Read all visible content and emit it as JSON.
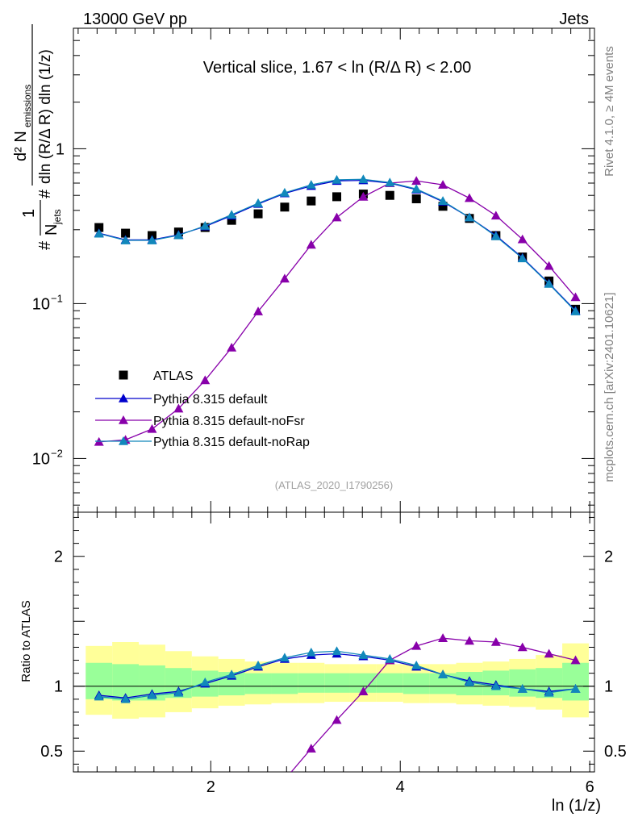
{
  "header": {
    "left": "13000 GeV pp",
    "right": "Jets"
  },
  "side_texts": {
    "rivet": "Rivet 4.1.0, ≥ 4M events",
    "mcplots": "mcplots.cern.ch [arXiv:2401.10621]"
  },
  "ref_label": "(ATLAS_2020_I1790256)",
  "colors": {
    "atlas": "#000000",
    "default": "#0000cc",
    "noFsr": "#8800aa",
    "noRap": "#1188bb",
    "band_inner": "#99ff99",
    "band_outer": "#ffff99"
  },
  "chart_data": [
    {
      "id": "main",
      "type": "scatter",
      "title": "Vertical slice, 1.67 < ln (R/Δ R) < 2.00",
      "xlabel": "ln (1/z)",
      "ylabel": {
        "numerator": "d² N",
        "numerator_sub": "emissions",
        "denominator": "dln (R/Δ R) dln (1/z)",
        "prefix": "1",
        "prefix_den": "N",
        "prefix_sub": "jets"
      },
      "yscale": "log",
      "xlim": [
        0.55,
        6.05
      ],
      "ylim": [
        0.0045,
        6.0
      ],
      "yticks": [
        {
          "v": 0.01,
          "base": "10",
          "exp": "−2"
        },
        {
          "v": 0.1,
          "base": "10",
          "exp": "−1"
        },
        {
          "v": 1,
          "label": "1"
        }
      ],
      "legend_position": "lower-left",
      "series": [
        {
          "name": "ATLAS",
          "style": "square",
          "color": "#000000",
          "x": [
            0.82,
            1.1,
            1.38,
            1.66,
            1.94,
            2.22,
            2.5,
            2.78,
            3.06,
            3.33,
            3.61,
            3.89,
            4.17,
            4.45,
            4.73,
            5.01,
            5.29,
            5.57,
            5.85
          ],
          "y": [
            0.31,
            0.285,
            0.275,
            0.29,
            0.31,
            0.345,
            0.38,
            0.42,
            0.46,
            0.49,
            0.51,
            0.5,
            0.475,
            0.425,
            0.355,
            0.275,
            0.2,
            0.14,
            0.092
          ]
        },
        {
          "name": "Pythia 8.315 default",
          "style": "triangle",
          "color": "#0000cc",
          "x": [
            0.82,
            1.1,
            1.38,
            1.66,
            1.94,
            2.22,
            2.5,
            2.78,
            3.06,
            3.33,
            3.61,
            3.89,
            4.17,
            4.45,
            4.73,
            5.01,
            5.29,
            5.57,
            5.85
          ],
          "y": [
            0.285,
            0.258,
            0.258,
            0.278,
            0.315,
            0.37,
            0.44,
            0.515,
            0.575,
            0.62,
            0.625,
            0.6,
            0.545,
            0.455,
            0.36,
            0.275,
            0.198,
            0.135,
            0.09
          ]
        },
        {
          "name": "Pythia 8.315 default-noFsr",
          "style": "triangle",
          "color": "#8800aa",
          "x": [
            0.82,
            1.1,
            1.38,
            1.66,
            1.94,
            2.22,
            2.5,
            2.78,
            3.06,
            3.33,
            3.61,
            3.89,
            4.17,
            4.45,
            4.73,
            5.01,
            5.29,
            5.57,
            5.85
          ],
          "y": [
            0.0128,
            0.0132,
            0.0155,
            0.021,
            0.032,
            0.052,
            0.089,
            0.145,
            0.24,
            0.36,
            0.49,
            0.6,
            0.62,
            0.585,
            0.48,
            0.37,
            0.26,
            0.175,
            0.11
          ]
        },
        {
          "name": "Pythia 8.315 default-noRap",
          "style": "triangle",
          "color": "#1188bb",
          "x": [
            0.82,
            1.1,
            1.38,
            1.66,
            1.94,
            2.22,
            2.5,
            2.78,
            3.06,
            3.33,
            3.61,
            3.89,
            4.17,
            4.45,
            4.73,
            5.01,
            5.29,
            5.57,
            5.85
          ],
          "y": [
            0.283,
            0.256,
            0.256,
            0.276,
            0.318,
            0.375,
            0.445,
            0.52,
            0.585,
            0.63,
            0.635,
            0.605,
            0.55,
            0.46,
            0.36,
            0.272,
            0.196,
            0.134,
            0.089
          ]
        }
      ]
    },
    {
      "id": "ratio",
      "type": "scatter",
      "xlabel": "ln (1/z)",
      "ylabel": "Ratio to ATLAS",
      "xlim": [
        0.55,
        6.05
      ],
      "ylim": [
        0.34,
        2.34
      ],
      "xticks": [
        2,
        4,
        6
      ],
      "yticks": [
        0.5,
        1,
        2
      ],
      "band_edges": [
        0.68,
        0.96,
        1.24,
        1.52,
        1.8,
        2.08,
        2.36,
        2.64,
        2.92,
        3.2,
        3.47,
        3.75,
        4.03,
        4.31,
        4.59,
        4.87,
        5.15,
        5.43,
        5.71,
        5.99
      ],
      "band_inner": [
        [
          0.9,
          1.18
        ],
        [
          0.89,
          1.17
        ],
        [
          0.89,
          1.16
        ],
        [
          0.91,
          1.14
        ],
        [
          0.92,
          1.12
        ],
        [
          0.93,
          1.11
        ],
        [
          0.94,
          1.1
        ],
        [
          0.94,
          1.1
        ],
        [
          0.95,
          1.1
        ],
        [
          0.95,
          1.1
        ],
        [
          0.95,
          1.1
        ],
        [
          0.95,
          1.1
        ],
        [
          0.94,
          1.1
        ],
        [
          0.94,
          1.1
        ],
        [
          0.93,
          1.11
        ],
        [
          0.93,
          1.12
        ],
        [
          0.92,
          1.13
        ],
        [
          0.91,
          1.14
        ],
        [
          0.89,
          1.18
        ]
      ],
      "band_outer": [
        [
          0.78,
          1.31
        ],
        [
          0.75,
          1.34
        ],
        [
          0.76,
          1.32
        ],
        [
          0.8,
          1.27
        ],
        [
          0.83,
          1.23
        ],
        [
          0.85,
          1.21
        ],
        [
          0.86,
          1.19
        ],
        [
          0.87,
          1.18
        ],
        [
          0.87,
          1.18
        ],
        [
          0.88,
          1.17
        ],
        [
          0.88,
          1.17
        ],
        [
          0.88,
          1.17
        ],
        [
          0.87,
          1.17
        ],
        [
          0.87,
          1.17
        ],
        [
          0.86,
          1.18
        ],
        [
          0.85,
          1.19
        ],
        [
          0.84,
          1.21
        ],
        [
          0.82,
          1.24
        ],
        [
          0.76,
          1.33
        ]
      ],
      "series": [
        {
          "name": "Pythia 8.315 default",
          "color": "#0000cc",
          "x": [
            0.82,
            1.1,
            1.38,
            1.66,
            1.94,
            2.22,
            2.5,
            2.78,
            3.06,
            3.33,
            3.61,
            3.89,
            4.17,
            4.45,
            4.73,
            5.01,
            5.29,
            5.57,
            5.85
          ],
          "y": [
            0.93,
            0.91,
            0.94,
            0.96,
            1.02,
            1.08,
            1.15,
            1.21,
            1.24,
            1.25,
            1.23,
            1.2,
            1.15,
            1.09,
            1.04,
            1.01,
            0.98,
            0.96,
            0.98
          ]
        },
        {
          "name": "Pythia 8.315 default-noFsr",
          "color": "#8800aa",
          "x": [
            3.06,
            3.33,
            3.61,
            3.89,
            4.17,
            4.45,
            4.73,
            5.01,
            5.29,
            5.57,
            5.85
          ],
          "y": [
            0.52,
            0.74,
            0.96,
            1.2,
            1.31,
            1.37,
            1.35,
            1.34,
            1.3,
            1.25,
            1.2
          ]
        },
        {
          "name": "Pythia 8.315 default-noRap",
          "color": "#1188bb",
          "x": [
            0.82,
            1.1,
            1.38,
            1.66,
            1.94,
            2.22,
            2.5,
            2.78,
            3.06,
            3.33,
            3.61,
            3.89,
            4.17,
            4.45,
            4.73,
            5.01,
            5.29,
            5.57,
            5.85
          ],
          "y": [
            0.92,
            0.9,
            0.93,
            0.95,
            1.03,
            1.09,
            1.16,
            1.22,
            1.26,
            1.27,
            1.24,
            1.21,
            1.16,
            1.09,
            1.03,
            1.0,
            0.98,
            0.95,
            0.98
          ]
        }
      ],
      "noFsr_low_segment": {
        "x": [
          2.85,
          3.06
        ],
        "y": [
          0.34,
          0.52
        ]
      }
    }
  ]
}
